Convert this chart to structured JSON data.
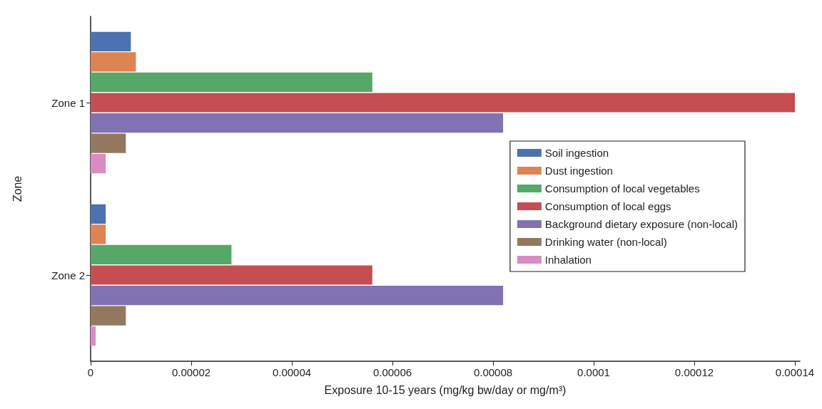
{
  "chart_data": {
    "type": "bar",
    "orientation": "horizontal",
    "xlabel": "Exposure 10-15 years (mg/kg bw/day or mg/m³)",
    "ylabel": "Zone",
    "categories": [
      "Zone 1",
      "Zone 2"
    ],
    "series": [
      {
        "name": "Soil ingestion",
        "color": "#4c72b0",
        "values": [
          8e-06,
          3e-06
        ]
      },
      {
        "name": "Dust ingestion",
        "color": "#dd8452",
        "values": [
          9e-06,
          3e-06
        ]
      },
      {
        "name": "Consumption of local vegetables",
        "color": "#55a868",
        "values": [
          5.6e-05,
          2.8e-05
        ]
      },
      {
        "name": "Consumption of local eggs",
        "color": "#c44e52",
        "values": [
          0.00014,
          5.6e-05
        ]
      },
      {
        "name": "Background dietary exposure (non-local)",
        "color": "#8172b3",
        "values": [
          8.2e-05,
          8.2e-05
        ]
      },
      {
        "name": "Drinking water (non-local)",
        "color": "#937860",
        "values": [
          7e-06,
          7e-06
        ]
      },
      {
        "name": "Inhalation",
        "color": "#da8bc3",
        "values": [
          3e-06,
          1e-06
        ]
      }
    ],
    "xlim": [
      0,
      0.000141
    ],
    "xticks": [
      0,
      {
        "value": 2e-05,
        "label": "0.00002"
      },
      {
        "value": 4e-05,
        "label": "0.00004"
      },
      {
        "value": 6e-05,
        "label": "0.00006"
      },
      {
        "value": 8e-05,
        "label": "0.00008"
      },
      0.0001,
      0.00012,
      0.00014
    ],
    "grid": false,
    "legend": "right"
  }
}
